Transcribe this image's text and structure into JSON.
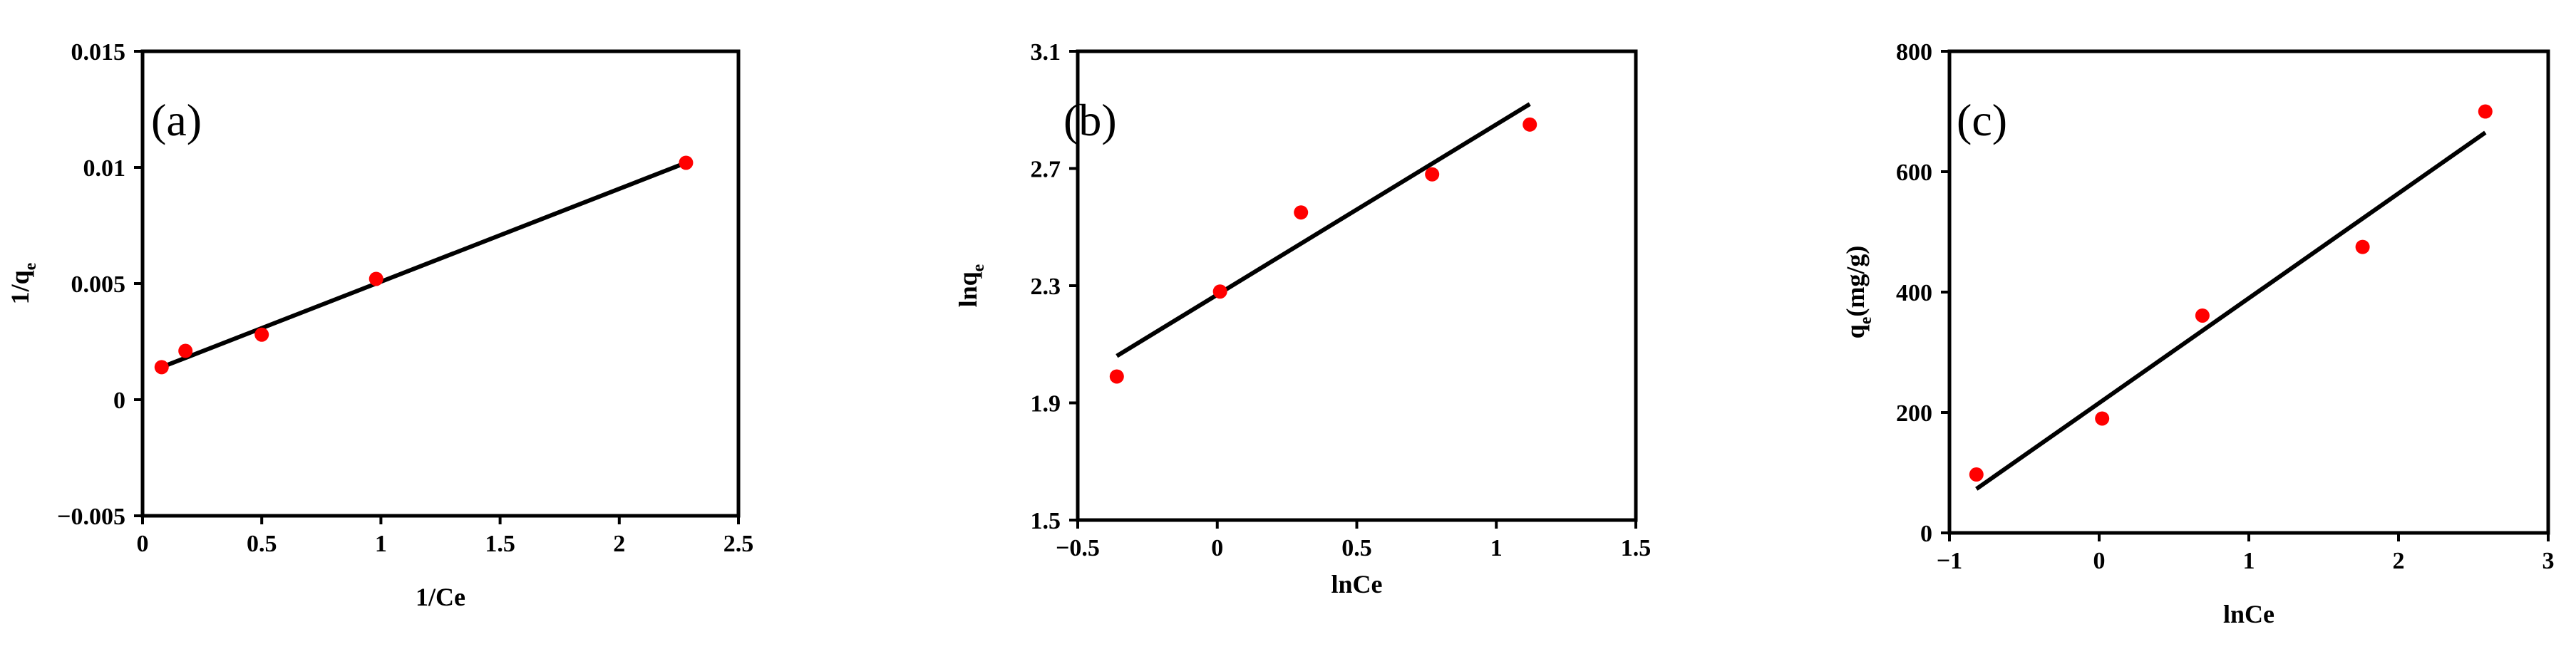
{
  "colors": {
    "point": "#ff0000",
    "line": "#000000",
    "axis": "#000000"
  },
  "chart_data": [
    {
      "type": "scatter",
      "panel_label": "(a)",
      "xlabel": "1/Ce",
      "ylabel": {
        "main": "1/q",
        "sub": "e",
        "suffix": ""
      },
      "xlim": [
        0,
        2.5
      ],
      "ylim": [
        -0.005,
        0.015
      ],
      "xticks": [
        0,
        0.5,
        1,
        1.5,
        2,
        2.5
      ],
      "xtick_labels": [
        "0",
        "0.5",
        "1",
        "1.5",
        "2",
        "2.5"
      ],
      "yticks": [
        -0.005,
        0,
        0.005,
        0.01,
        0.015
      ],
      "ytick_labels": [
        "−0.005",
        "0",
        "0.005",
        "0.01",
        "0.015"
      ],
      "points": [
        {
          "x": 0.08,
          "y": 0.0014
        },
        {
          "x": 0.18,
          "y": 0.0021
        },
        {
          "x": 0.5,
          "y": 0.0028
        },
        {
          "x": 0.98,
          "y": 0.0052
        },
        {
          "x": 2.28,
          "y": 0.0102
        }
      ],
      "fit_line": {
        "x": [
          0.08,
          2.28
        ],
        "y": [
          0.0014,
          0.0102
        ]
      },
      "grid": false
    },
    {
      "type": "scatter",
      "panel_label": "(b)",
      "xlabel": "lnCe",
      "ylabel": {
        "main": "lnq",
        "sub": "e",
        "suffix": ""
      },
      "xlim": [
        -0.5,
        1.5
      ],
      "ylim": [
        1.5,
        3.1
      ],
      "xticks": [
        -0.5,
        0,
        0.5,
        1,
        1.5
      ],
      "xtick_labels": [
        "−0.5",
        "0",
        "0.5",
        "1",
        "1.5"
      ],
      "yticks": [
        1.5,
        1.9,
        2.3,
        2.7,
        3.1
      ],
      "ytick_labels": [
        "1.5",
        "1.9",
        "2.3",
        "2.7",
        "3.1"
      ],
      "points": [
        {
          "x": -0.36,
          "y": 1.99
        },
        {
          "x": 0.01,
          "y": 2.28
        },
        {
          "x": 0.3,
          "y": 2.55
        },
        {
          "x": 0.77,
          "y": 2.68
        },
        {
          "x": 1.12,
          "y": 2.85
        }
      ],
      "fit_line": {
        "x": [
          -0.36,
          1.12
        ],
        "y": [
          2.06,
          2.92
        ]
      },
      "grid": false
    },
    {
      "type": "scatter",
      "panel_label": "(c)",
      "xlabel": "lnCe",
      "ylabel": {
        "main": "q",
        "sub": "e",
        "suffix": "(mg/g)"
      },
      "xlim": [
        -1,
        3
      ],
      "ylim": [
        0,
        800
      ],
      "xticks": [
        -1,
        0,
        1,
        2,
        3
      ],
      "xtick_labels": [
        "−1",
        "0",
        "1",
        "2",
        "3"
      ],
      "yticks": [
        0,
        200,
        400,
        600,
        800
      ],
      "ytick_labels": [
        "0",
        "200",
        "400",
        "600",
        "800"
      ],
      "points": [
        {
          "x": -0.82,
          "y": 97
        },
        {
          "x": 0.02,
          "y": 190
        },
        {
          "x": 0.69,
          "y": 361
        },
        {
          "x": 1.76,
          "y": 475
        },
        {
          "x": 2.58,
          "y": 700
        }
      ],
      "fit_line": {
        "x": [
          -0.82,
          2.58
        ],
        "y": [
          73,
          665
        ]
      },
      "grid": false
    }
  ]
}
